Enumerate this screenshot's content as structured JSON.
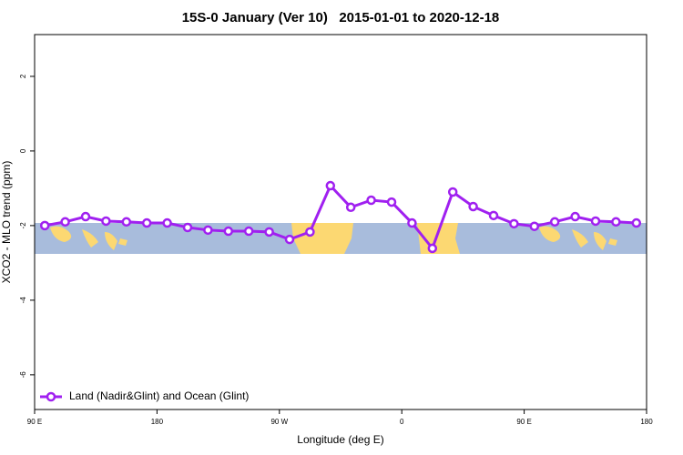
{
  "chart_data": {
    "type": "line",
    "title": "15S-0 January (Ver 10)   2015-01-01 to 2020-12-18",
    "xlabel": "Longitude (deg E)",
    "ylabel": "XCO2 - MLO trend (ppm)",
    "xlim": [
      90,
      540
    ],
    "xticks": [
      {
        "value": 90,
        "label": "90 E"
      },
      {
        "value": 180,
        "label": "180"
      },
      {
        "value": 270,
        "label": "90 W"
      },
      {
        "value": 360,
        "label": "0"
      },
      {
        "value": 450,
        "label": "90 E"
      },
      {
        "value": 540,
        "label": "180"
      }
    ],
    "ylim": [
      -6.93,
      3.12
    ],
    "yticks": [
      -6,
      -4,
      -2,
      0,
      2
    ],
    "legend": "bottom-left",
    "series": [
      {
        "name": "Land (Nadir&Glint) and Ocean (Glint)",
        "color": "#a020f0",
        "x": [
          97.5,
          112.5,
          127.5,
          142.5,
          157.5,
          172.5,
          187.5,
          202.5,
          217.5,
          232.5,
          247.5,
          262.5,
          277.5,
          292.5,
          307.5,
          322.5,
          337.5,
          352.5,
          367.5,
          382.5,
          397.5,
          412.5,
          427.5,
          442.5,
          457.5,
          472.5,
          487.5,
          502.5,
          517.5,
          532.5
        ],
        "values": [
          -2,
          -1.9,
          -1.76,
          -1.88,
          -1.9,
          -1.93,
          -1.93,
          -2.05,
          -2.12,
          -2.15,
          -2.15,
          -2.17,
          -2.37,
          -2.17,
          -0.93,
          -1.51,
          -1.32,
          -1.37,
          -1.93,
          -2.61,
          -1.1,
          -1.49,
          -1.73,
          -1.95,
          -2.02,
          -1.9,
          -1.76,
          -1.88,
          -1.9,
          -1.93
        ]
      }
    ]
  }
}
